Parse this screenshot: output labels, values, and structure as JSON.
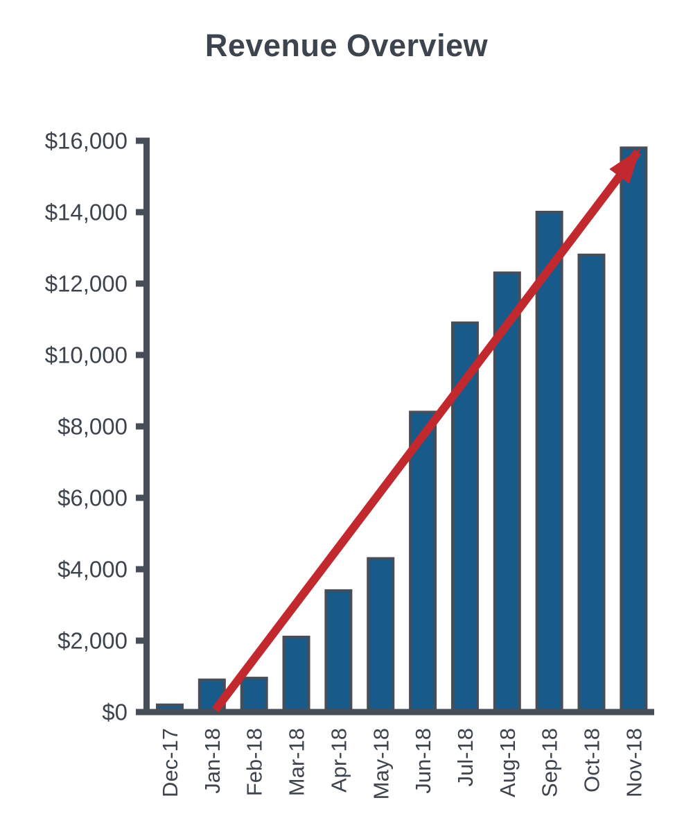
{
  "page": {
    "title": "Revenue Overview"
  },
  "chart_data": {
    "type": "bar",
    "title": "Revenue Overview",
    "categories": [
      "Dec-17",
      "Jan-18",
      "Feb-18",
      "Mar-18",
      "Apr-18",
      "May-18",
      "Jun-18",
      "Jul-18",
      "Aug-18",
      "Sep-18",
      "Oct-18",
      "Nov-18"
    ],
    "values": [
      200,
      900,
      950,
      2100,
      3400,
      4300,
      8400,
      10900,
      12300,
      14000,
      12800,
      15800
    ],
    "series_name": "Revenue",
    "xlabel": "",
    "ylabel": "",
    "ylim": [
      0,
      16000
    ],
    "y_tick_step": 2000,
    "y_tick_labels": [
      "$0",
      "$2,000",
      "$4,000",
      "$6,000",
      "$8,000",
      "$10,000",
      "$12,000",
      "$14,000",
      "$16,000"
    ],
    "x_tick_rotation": -90,
    "grid": false,
    "legend": "none",
    "trendline": {
      "type": "arrow",
      "from": {
        "category": "Jan-18",
        "value": 0
      },
      "to": {
        "category": "Nov-18",
        "value": 15800
      }
    },
    "colors": {
      "background": "#ffffff",
      "text": "#3e444d",
      "axis": "#474e57",
      "bar_fill": "#185a89",
      "bar_stroke": "#474e57",
      "trend": "#c2292f"
    }
  }
}
